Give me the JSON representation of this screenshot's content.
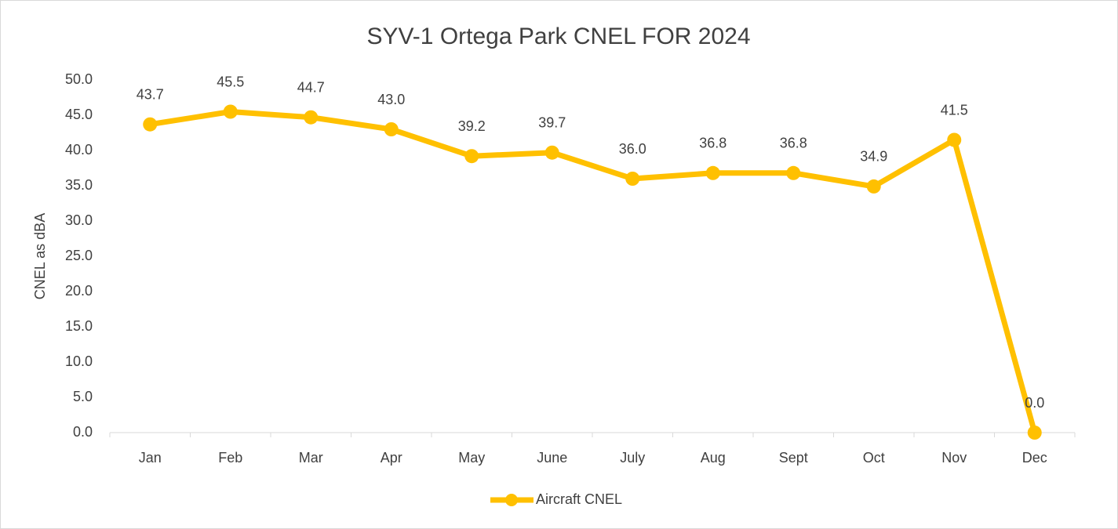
{
  "chart_data": {
    "type": "line",
    "title": "SYV-1 Ortega Park CNEL FOR 2024",
    "y_label": "CNEL as dBA",
    "categories": [
      "Jan",
      "Feb",
      "Mar",
      "Apr",
      "May",
      "June",
      "July",
      "Aug",
      "Sept",
      "Oct",
      "Nov",
      "Dec"
    ],
    "series": [
      {
        "name": "Aircraft CNEL",
        "color": "#FFC000",
        "values": [
          43.7,
          45.5,
          44.7,
          43.0,
          39.2,
          39.7,
          36.0,
          36.8,
          36.8,
          34.9,
          41.5,
          0.0
        ],
        "value_labels": [
          "43.7",
          "45.5",
          "44.7",
          "43.0",
          "39.2",
          "39.7",
          "36.0",
          "36.8",
          "36.8",
          "34.9",
          "41.5",
          "0.0"
        ]
      }
    ],
    "ylim": [
      0,
      50
    ],
    "yticks": [
      {
        "value": 0,
        "label": "0.0"
      },
      {
        "value": 5,
        "label": "5.0"
      },
      {
        "value": 10,
        "label": "10.0"
      },
      {
        "value": 15,
        "label": "15.0"
      },
      {
        "value": 20,
        "label": "20.0"
      },
      {
        "value": 25,
        "label": "25.0"
      },
      {
        "value": 30,
        "label": "30.0"
      },
      {
        "value": 35,
        "label": "35.0"
      },
      {
        "value": 40,
        "label": "40.0"
      },
      {
        "value": 45,
        "label": "45.0"
      },
      {
        "value": 50,
        "label": "50.0"
      }
    ],
    "grid": false,
    "legend": "bottom"
  }
}
